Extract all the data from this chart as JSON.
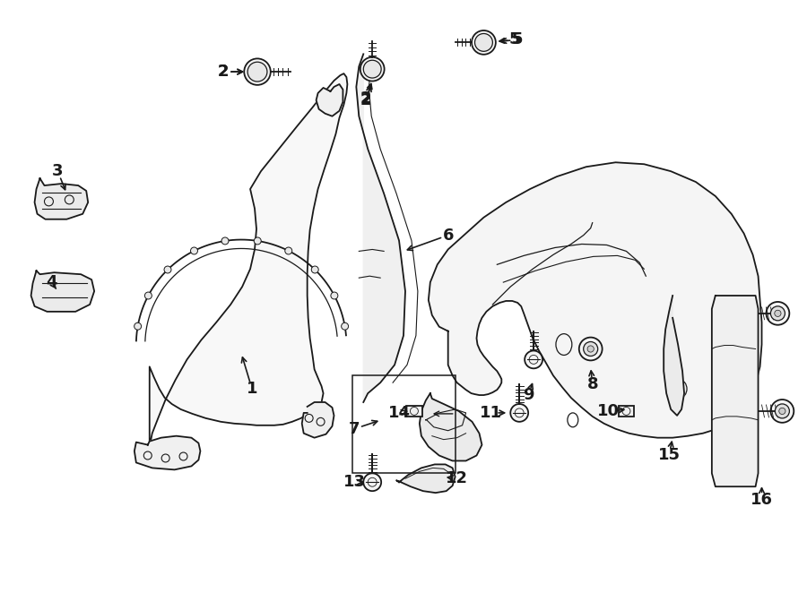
{
  "bg_color": "#ffffff",
  "line_color": "#1a1a1a",
  "fig_width": 9.0,
  "fig_height": 6.62,
  "lw": 1.3
}
